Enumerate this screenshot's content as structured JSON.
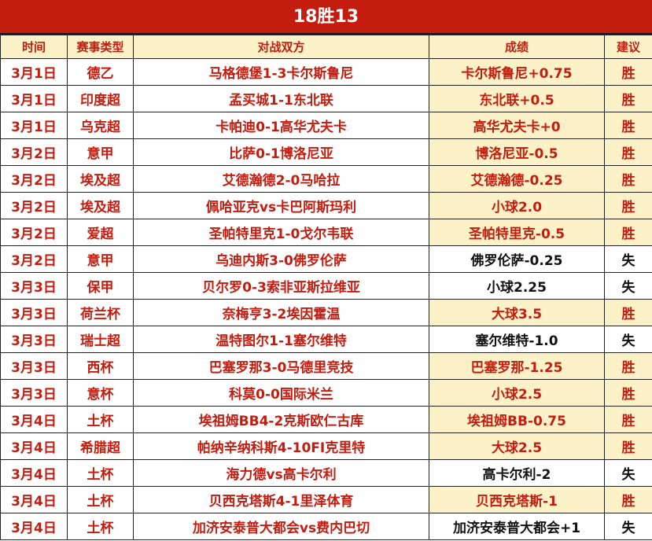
{
  "title": "18胜13",
  "headers": [
    "时间",
    "赛事类型",
    "对战双方",
    "成绩",
    "建议"
  ],
  "colors": {
    "accent": "#c41d10",
    "highlight": "#fdf1c8",
    "loss_text": "#111111"
  },
  "rows": [
    {
      "date": "3月1日",
      "league": "德乙",
      "match": "马格德堡1-3卡尔斯鲁尼",
      "result": "卡尔斯鲁尼+0.75",
      "advice": "胜"
    },
    {
      "date": "3月1日",
      "league": "印度超",
      "match": "孟买城1-1东北联",
      "result": "东北联+0.5",
      "advice": "胜"
    },
    {
      "date": "3月1日",
      "league": "乌克超",
      "match": "卡帕迪0-1高华尤夫卡",
      "result": "高华尤夫卡+0",
      "advice": "胜"
    },
    {
      "date": "3月2日",
      "league": "意甲",
      "match": "比萨0-1博洛尼亚",
      "result": "博洛尼亚-0.5",
      "advice": "胜"
    },
    {
      "date": "3月2日",
      "league": "埃及超",
      "match": "艾德瀚德2-0马哈拉",
      "result": "艾德瀚德-0.25",
      "advice": "胜"
    },
    {
      "date": "3月2日",
      "league": "埃及超",
      "match": "佩哈亚克vs卡巴阿斯玛利",
      "result": "小球2.0",
      "advice": "胜"
    },
    {
      "date": "3月2日",
      "league": "爱超",
      "match": "圣帕特里克1-0戈尔韦联",
      "result": "圣帕特里克-0.5",
      "advice": "胜"
    },
    {
      "date": "3月2日",
      "league": "意甲",
      "match": "乌迪内斯3-0佛罗伦萨",
      "result": "佛罗伦萨-0.25",
      "advice": "失"
    },
    {
      "date": "3月3日",
      "league": "保甲",
      "match": "贝尔罗0-3索非亚斯拉维亚",
      "result": "小球2.25",
      "advice": "失"
    },
    {
      "date": "3月3日",
      "league": "荷兰杯",
      "match": "奈梅亨3-2埃因霍温",
      "result": "大球3.5",
      "advice": "胜"
    },
    {
      "date": "3月3日",
      "league": "瑞士超",
      "match": "温特图尔1-1塞尔维特",
      "result": "塞尔维特-1.0",
      "advice": "失"
    },
    {
      "date": "3月3日",
      "league": "西杯",
      "match": "巴塞罗那3-0马德里竞技",
      "result": "巴塞罗那-1.25",
      "advice": "胜"
    },
    {
      "date": "3月3日",
      "league": "意杯",
      "match": "科莫0-0国际米兰",
      "result": "小球2.5",
      "advice": "胜"
    },
    {
      "date": "3月4日",
      "league": "土杯",
      "match": "埃祖姆BB4-2克斯欧仁古库",
      "result": "埃祖姆BB-0.75",
      "advice": "胜"
    },
    {
      "date": "3月4日",
      "league": "希腊超",
      "match": "帕纳辛纳科斯4-10FI克里特",
      "result": "大球2.5",
      "advice": "胜"
    },
    {
      "date": "3月4日",
      "league": "土杯",
      "match": "海力德vs高卡尔利",
      "result": "高卡尔利-2",
      "advice": "失"
    },
    {
      "date": "3月4日",
      "league": "土杯",
      "match": "贝西克塔斯4-1里泽体育",
      "result": "贝西克塔斯-1",
      "advice": "胜"
    },
    {
      "date": "3月4日",
      "league": "土杯",
      "match": "加济安泰普大都会vs费内巴切",
      "result": "加济安泰普大都会+1",
      "advice": "失"
    }
  ]
}
